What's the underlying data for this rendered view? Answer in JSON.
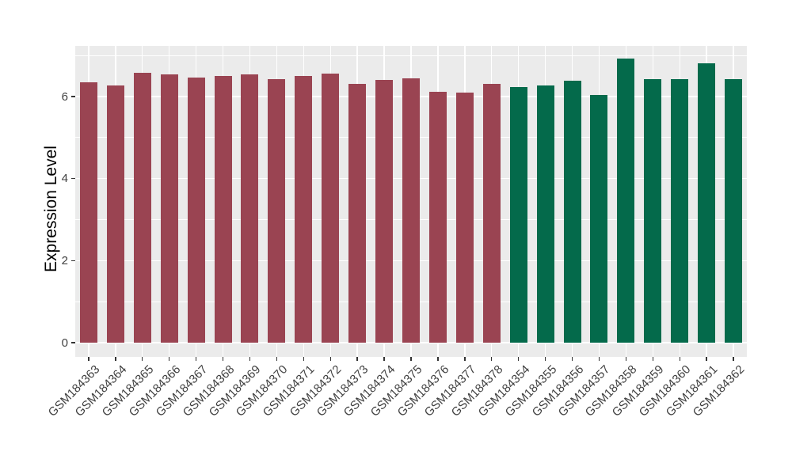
{
  "chart_data": {
    "type": "bar",
    "title": "",
    "xlabel": "",
    "ylabel": "Expression Level",
    "ylim": [
      0,
      7.24
    ],
    "yticks": [
      "0",
      "2",
      "4",
      "6"
    ],
    "ytick_values": [
      0,
      2,
      4,
      6
    ],
    "ytick_minor_values": [
      1,
      3,
      5,
      7
    ],
    "grid": "on",
    "legend_position": "none",
    "panel_background": "#EBEBEB",
    "gridline_color": "#FFFFFF",
    "axis_text_color": "#404040",
    "group_colors": [
      "#9A4452",
      "#046A4B"
    ],
    "bars": [
      {
        "label": "GSM184363",
        "value": 6.34,
        "color": "#9A4452"
      },
      {
        "label": "GSM184364",
        "value": 6.28,
        "color": "#9A4452"
      },
      {
        "label": "GSM184365",
        "value": 6.59,
        "color": "#9A4452"
      },
      {
        "label": "GSM184366",
        "value": 6.55,
        "color": "#9A4452"
      },
      {
        "label": "GSM184367",
        "value": 6.46,
        "color": "#9A4452"
      },
      {
        "label": "GSM184368",
        "value": 6.51,
        "color": "#9A4452"
      },
      {
        "label": "GSM184369",
        "value": 6.55,
        "color": "#9A4452"
      },
      {
        "label": "GSM184370",
        "value": 6.42,
        "color": "#9A4452"
      },
      {
        "label": "GSM184371",
        "value": 6.5,
        "color": "#9A4452"
      },
      {
        "label": "GSM184372",
        "value": 6.57,
        "color": "#9A4452"
      },
      {
        "label": "GSM184373",
        "value": 6.31,
        "color": "#9A4452"
      },
      {
        "label": "GSM184374",
        "value": 6.41,
        "color": "#9A4452"
      },
      {
        "label": "GSM184375",
        "value": 6.44,
        "color": "#9A4452"
      },
      {
        "label": "GSM184376",
        "value": 6.12,
        "color": "#9A4452"
      },
      {
        "label": "GSM184377",
        "value": 6.09,
        "color": "#9A4452"
      },
      {
        "label": "GSM184378",
        "value": 6.31,
        "color": "#9A4452"
      },
      {
        "label": "GSM184354",
        "value": 6.24,
        "color": "#046A4B"
      },
      {
        "label": "GSM184355",
        "value": 6.28,
        "color": "#046A4B"
      },
      {
        "label": "GSM184356",
        "value": 6.39,
        "color": "#046A4B"
      },
      {
        "label": "GSM184357",
        "value": 6.04,
        "color": "#046A4B"
      },
      {
        "label": "GSM184358",
        "value": 6.92,
        "color": "#046A4B"
      },
      {
        "label": "GSM184359",
        "value": 6.43,
        "color": "#046A4B"
      },
      {
        "label": "GSM184360",
        "value": 6.43,
        "color": "#046A4B"
      },
      {
        "label": "GSM184361",
        "value": 6.81,
        "color": "#046A4B"
      },
      {
        "label": "GSM184362",
        "value": 6.43,
        "color": "#046A4B"
      }
    ]
  }
}
